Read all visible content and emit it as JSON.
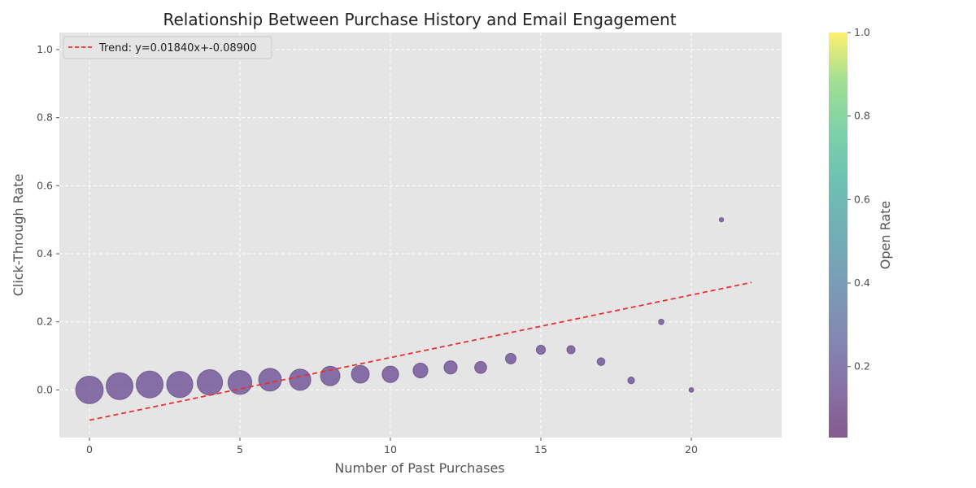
{
  "chart_data": {
    "type": "scatter",
    "title": "Relationship Between Purchase History and Email Engagement",
    "xlabel": "Number of Past Purchases",
    "ylabel": "Click-Through Rate",
    "colorbar_label": "Open Rate",
    "xlim": [
      -1,
      23
    ],
    "ylim": [
      -0.14,
      1.05
    ],
    "xticks": [
      0,
      5,
      10,
      15,
      20
    ],
    "yticks": [
      0.0,
      0.2,
      0.4,
      0.6,
      0.8,
      1.0
    ],
    "colorbar_ticks": [
      0.2,
      0.4,
      0.6,
      0.8,
      1.0
    ],
    "colorbar_range": [
      0.03,
      1.0
    ],
    "grid": true,
    "legend_position": "top-left",
    "colors": {
      "plot_background": "#e5e5e5",
      "grid": "#ffffff",
      "point": "#6a4c93",
      "trend_line": "#e8302f"
    },
    "points": [
      {
        "x": 0,
        "y": 0.0,
        "size": 1.0
      },
      {
        "x": 1,
        "y": 0.011,
        "size": 0.95
      },
      {
        "x": 2,
        "y": 0.016,
        "size": 0.95
      },
      {
        "x": 3,
        "y": 0.016,
        "size": 0.9
      },
      {
        "x": 4,
        "y": 0.022,
        "size": 0.85
      },
      {
        "x": 5,
        "y": 0.022,
        "size": 0.75
      },
      {
        "x": 6,
        "y": 0.03,
        "size": 0.68
      },
      {
        "x": 7,
        "y": 0.03,
        "size": 0.6
      },
      {
        "x": 8,
        "y": 0.041,
        "size": 0.5
      },
      {
        "x": 9,
        "y": 0.046,
        "size": 0.42
      },
      {
        "x": 10,
        "y": 0.046,
        "size": 0.36
      },
      {
        "x": 11,
        "y": 0.057,
        "size": 0.29
      },
      {
        "x": 12,
        "y": 0.066,
        "size": 0.23
      },
      {
        "x": 13,
        "y": 0.066,
        "size": 0.19
      },
      {
        "x": 14,
        "y": 0.092,
        "size": 0.15
      },
      {
        "x": 15,
        "y": 0.118,
        "size": 0.11
      },
      {
        "x": 16,
        "y": 0.118,
        "size": 0.09
      },
      {
        "x": 17,
        "y": 0.083,
        "size": 0.08
      },
      {
        "x": 18,
        "y": 0.028,
        "size": 0.06
      },
      {
        "x": 19,
        "y": 0.2,
        "size": 0.04
      },
      {
        "x": 20,
        "y": 0.0,
        "size": 0.03
      },
      {
        "x": 21,
        "y": 0.5,
        "size": 0.025
      }
    ],
    "trend": {
      "label": "Trend: y=0.01840x+-0.08900",
      "slope": 0.0184,
      "intercept": -0.089,
      "x_range": [
        0,
        22
      ]
    }
  }
}
